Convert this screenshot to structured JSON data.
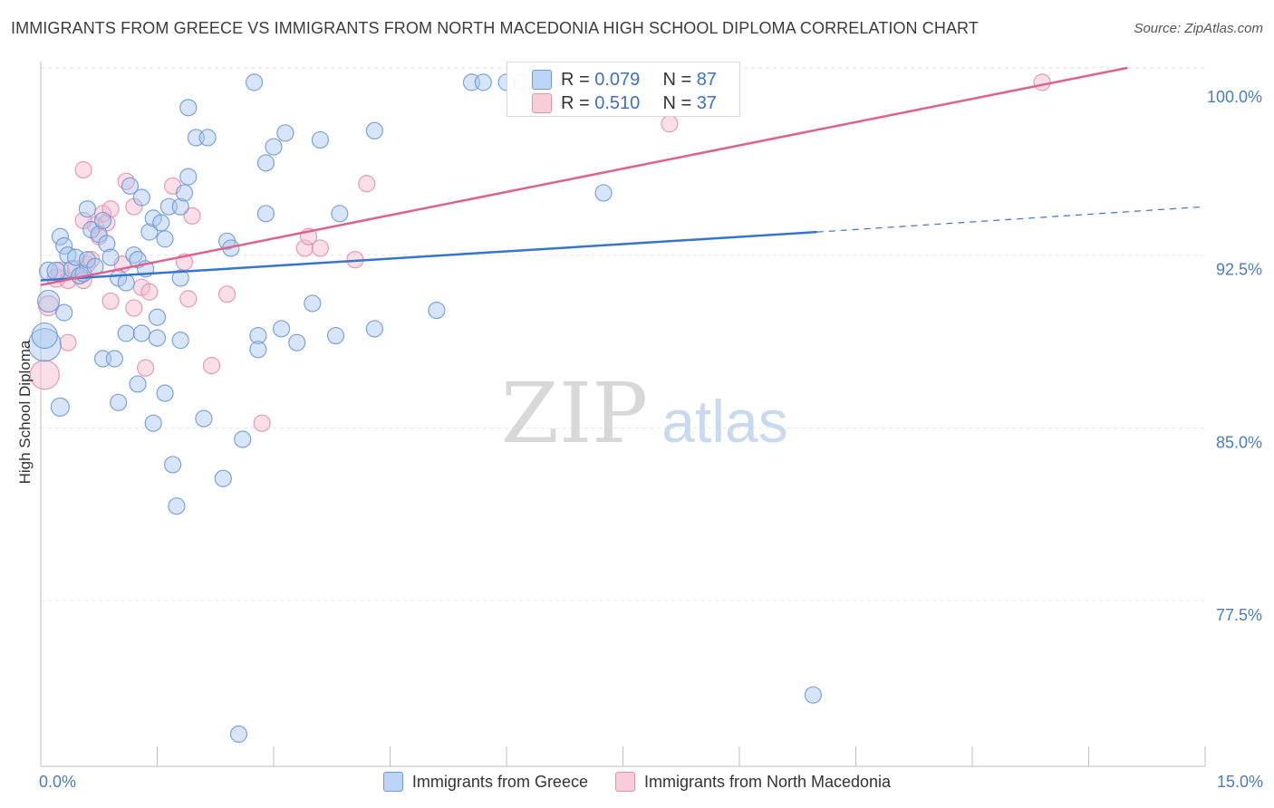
{
  "title": "IMMIGRANTS FROM GREECE VS IMMIGRANTS FROM NORTH MACEDONIA HIGH SCHOOL DIPLOMA CORRELATION CHART",
  "source": "Source: ZipAtlas.com",
  "watermark": {
    "zip": "ZIP",
    "atlas": "atlas"
  },
  "legend_top": {
    "rows": [
      {
        "r_label": "R = ",
        "r_value": "0.079",
        "n_label": "N = ",
        "n_value": "87"
      },
      {
        "r_label": "R = ",
        "r_value": "0.510",
        "n_label": "N = ",
        "n_value": "37"
      }
    ]
  },
  "chart_data": {
    "type": "scatter",
    "title": "IMMIGRANTS FROM GREECE VS IMMIGRANTS FROM NORTH MACEDONIA HIGH SCHOOL DIPLOMA CORRELATION CHART",
    "xlabel": "",
    "ylabel": "High School Diploma",
    "xlim": [
      0,
      15
    ],
    "ylim": [
      70.3,
      100.9
    ],
    "x_tick_labels": [
      "0.0%",
      "15.0%"
    ],
    "y_ticks": [
      77.5,
      85.0,
      92.5,
      100.0
    ],
    "y_tick_labels": [
      "77.5%",
      "85.0%",
      "92.5%",
      "100.0%"
    ],
    "grid": true,
    "colors": {
      "greece": "#6d9ad8",
      "greece_line": "#3574cf",
      "macedonia": "#e68fac",
      "macedonia_line": "#e0608e",
      "tick_label": "#4a7cc0"
    },
    "series": [
      {
        "name": "Immigrants from Greece",
        "R": 0.079,
        "N": 87,
        "trend": {
          "x0": 0.0,
          "y0": 91.4,
          "x1": 10.0,
          "y1": 93.5,
          "x_dash_end": 15.0,
          "y_dash_end": 94.6
        },
        "points": [
          [
            0.05,
            88.6,
            18
          ],
          [
            0.05,
            89.0,
            14
          ],
          [
            0.1,
            90.5,
            12
          ],
          [
            0.1,
            91.8,
            10
          ],
          [
            0.2,
            91.8,
            10
          ],
          [
            0.25,
            93.3,
            9
          ],
          [
            0.3,
            92.9,
            9
          ],
          [
            0.35,
            92.5,
            9
          ],
          [
            0.4,
            91.9,
            9
          ],
          [
            0.45,
            92.4,
            9
          ],
          [
            0.5,
            91.6,
            9
          ],
          [
            0.55,
            91.7,
            9
          ],
          [
            0.3,
            90.0,
            9
          ],
          [
            0.25,
            85.9,
            10
          ],
          [
            0.6,
            92.3,
            9
          ],
          [
            0.65,
            93.6,
            9
          ],
          [
            0.7,
            92.0,
            9
          ],
          [
            0.75,
            93.4,
            9
          ],
          [
            0.8,
            94.0,
            9
          ],
          [
            0.85,
            93.0,
            9
          ],
          [
            0.9,
            92.4,
            9
          ],
          [
            1.0,
            91.5,
            9
          ],
          [
            1.1,
            91.3,
            9
          ],
          [
            1.2,
            92.5,
            9
          ],
          [
            1.25,
            92.3,
            9
          ],
          [
            1.35,
            91.9,
            9
          ],
          [
            1.4,
            93.5,
            9
          ],
          [
            1.45,
            94.1,
            9
          ],
          [
            0.6,
            94.5,
            9
          ],
          [
            1.15,
            95.5,
            9
          ],
          [
            1.3,
            95.0,
            9
          ],
          [
            1.55,
            93.9,
            9
          ],
          [
            1.6,
            93.2,
            9
          ],
          [
            1.65,
            94.6,
            9
          ],
          [
            1.8,
            94.6,
            9
          ],
          [
            1.85,
            95.2,
            9
          ],
          [
            1.9,
            95.9,
            9
          ],
          [
            1.1,
            89.1,
            9
          ],
          [
            1.3,
            89.1,
            9
          ],
          [
            1.5,
            89.8,
            9
          ],
          [
            1.5,
            88.9,
            9
          ],
          [
            1.8,
            88.8,
            9
          ],
          [
            0.8,
            88.0,
            9
          ],
          [
            0.95,
            88.0,
            9
          ],
          [
            1.25,
            86.9,
            9
          ],
          [
            1.0,
            86.1,
            9
          ],
          [
            1.45,
            85.2,
            9
          ],
          [
            1.6,
            86.5,
            9
          ],
          [
            1.7,
            83.4,
            9
          ],
          [
            1.75,
            81.6,
            9
          ],
          [
            2.1,
            85.4,
            9
          ],
          [
            2.35,
            82.8,
            9
          ],
          [
            2.6,
            84.5,
            9
          ],
          [
            1.8,
            91.5,
            9
          ],
          [
            2.4,
            93.1,
            9
          ],
          [
            2.45,
            92.8,
            9
          ],
          [
            2.8,
            89.0,
            9
          ],
          [
            2.8,
            88.4,
            9
          ],
          [
            2.9,
            94.3,
            9
          ],
          [
            3.0,
            97.2,
            9
          ],
          [
            3.15,
            97.8,
            9
          ],
          [
            2.9,
            96.5,
            9
          ],
          [
            3.1,
            89.3,
            9
          ],
          [
            3.3,
            88.7,
            9
          ],
          [
            3.5,
            90.4,
            9
          ],
          [
            3.6,
            97.5,
            9
          ],
          [
            3.8,
            89.0,
            9
          ],
          [
            3.85,
            94.3,
            9
          ],
          [
            4.3,
            89.3,
            9
          ],
          [
            4.3,
            97.9,
            9
          ],
          [
            5.1,
            90.1,
            9
          ],
          [
            1.9,
            98.9,
            9
          ],
          [
            2.0,
            97.6,
            9
          ],
          [
            2.15,
            97.6,
            9
          ],
          [
            2.75,
            100.0,
            9
          ],
          [
            5.55,
            100.0,
            9
          ],
          [
            5.7,
            100.0,
            9
          ],
          [
            6.0,
            100.0,
            9
          ],
          [
            6.2,
            100.0,
            9
          ],
          [
            6.45,
            99.8,
            9
          ],
          [
            7.25,
            95.2,
            9
          ],
          [
            9.95,
            73.4,
            9
          ],
          [
            2.55,
            71.7,
            9
          ]
        ]
      },
      {
        "name": "Immigrants from North Macedonia",
        "R": 0.51,
        "N": 37,
        "trend": {
          "x0": 0.0,
          "y0": 91.2,
          "x1": 14.0,
          "y1": 100.0
        },
        "points": [
          [
            0.05,
            87.3,
            16
          ],
          [
            0.1,
            90.3,
            11
          ],
          [
            0.2,
            91.5,
            10
          ],
          [
            0.25,
            91.8,
            10
          ],
          [
            0.35,
            91.4,
            9
          ],
          [
            0.45,
            91.9,
            9
          ],
          [
            0.5,
            91.6,
            9
          ],
          [
            0.55,
            91.4,
            9
          ],
          [
            0.6,
            92.1,
            9
          ],
          [
            0.65,
            92.3,
            9
          ],
          [
            0.7,
            93.8,
            9
          ],
          [
            0.75,
            93.3,
            9
          ],
          [
            0.8,
            94.3,
            9
          ],
          [
            0.85,
            93.9,
            9
          ],
          [
            0.9,
            94.5,
            9
          ],
          [
            0.55,
            94.0,
            9
          ],
          [
            0.55,
            96.2,
            9
          ],
          [
            1.05,
            92.1,
            9
          ],
          [
            1.1,
            95.7,
            9
          ],
          [
            1.2,
            94.6,
            9
          ],
          [
            0.9,
            90.5,
            9
          ],
          [
            1.2,
            90.2,
            9
          ],
          [
            1.3,
            91.1,
            9
          ],
          [
            1.4,
            90.9,
            9
          ],
          [
            1.35,
            87.6,
            9
          ],
          [
            0.35,
            88.7,
            9
          ],
          [
            1.7,
            95.5,
            9
          ],
          [
            1.85,
            92.2,
            9
          ],
          [
            1.9,
            90.6,
            9
          ],
          [
            1.95,
            94.2,
            9
          ],
          [
            2.2,
            87.7,
            9
          ],
          [
            2.4,
            90.8,
            9
          ],
          [
            2.85,
            85.2,
            9
          ],
          [
            3.4,
            92.8,
            9
          ],
          [
            3.45,
            93.3,
            9
          ],
          [
            3.6,
            92.8,
            9
          ],
          [
            4.05,
            92.3,
            9
          ],
          [
            4.2,
            95.6,
            9
          ],
          [
            8.1,
            98.2,
            9
          ],
          [
            12.9,
            100.0,
            9
          ]
        ]
      }
    ]
  },
  "legend_bottom": {
    "items": [
      "Immigrants from Greece",
      "Immigrants from North Macedonia"
    ]
  }
}
